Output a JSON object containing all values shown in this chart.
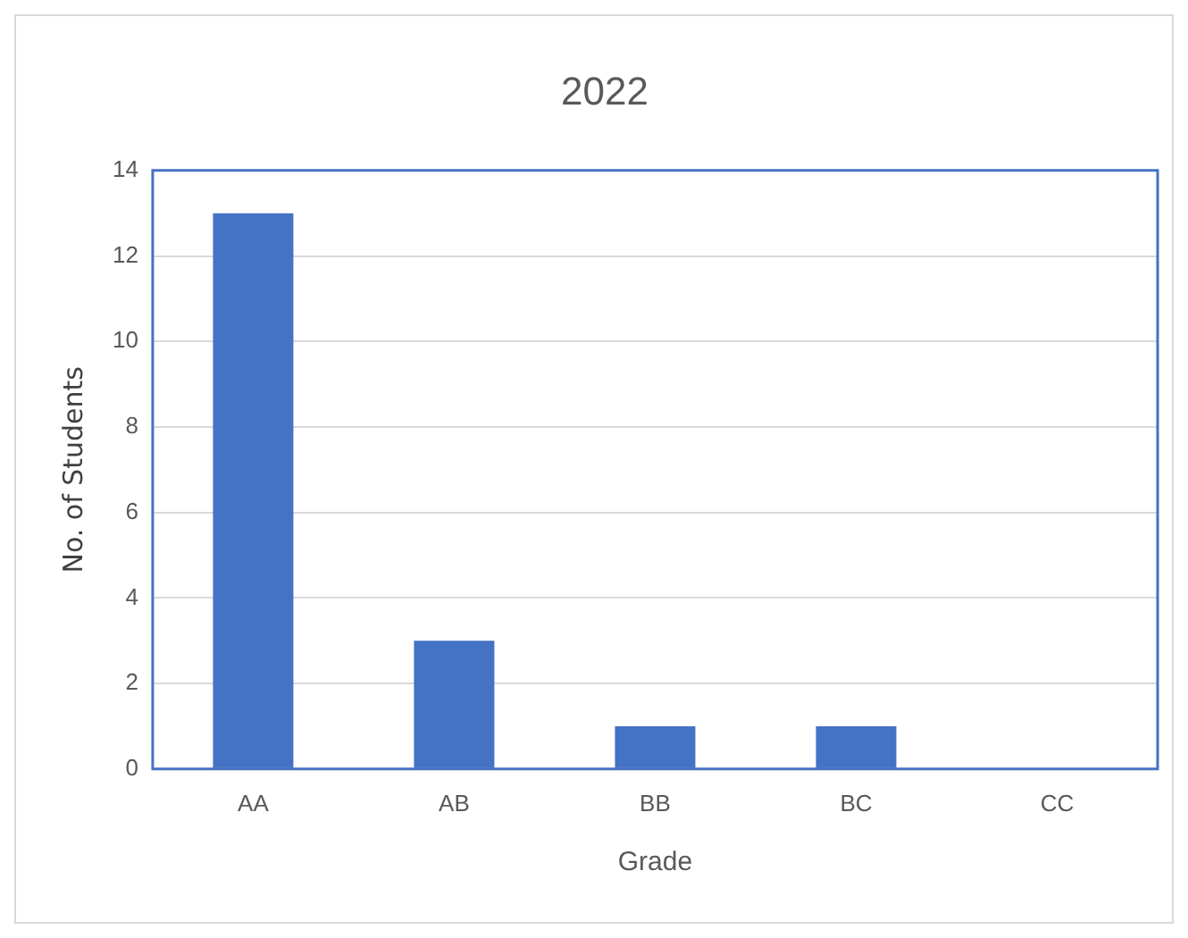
{
  "chart_data": {
    "type": "bar",
    "title": "2022",
    "xlabel": "Grade",
    "ylabel": "No. of Students",
    "categories": [
      "AA",
      "AB",
      "BB",
      "BC",
      "CC"
    ],
    "values": [
      13,
      3,
      1,
      1,
      0
    ],
    "color": "#4472c4",
    "ylim": [
      0,
      14
    ],
    "yticks": [
      0,
      2,
      4,
      6,
      8,
      10,
      12,
      14
    ],
    "grid": "y"
  }
}
